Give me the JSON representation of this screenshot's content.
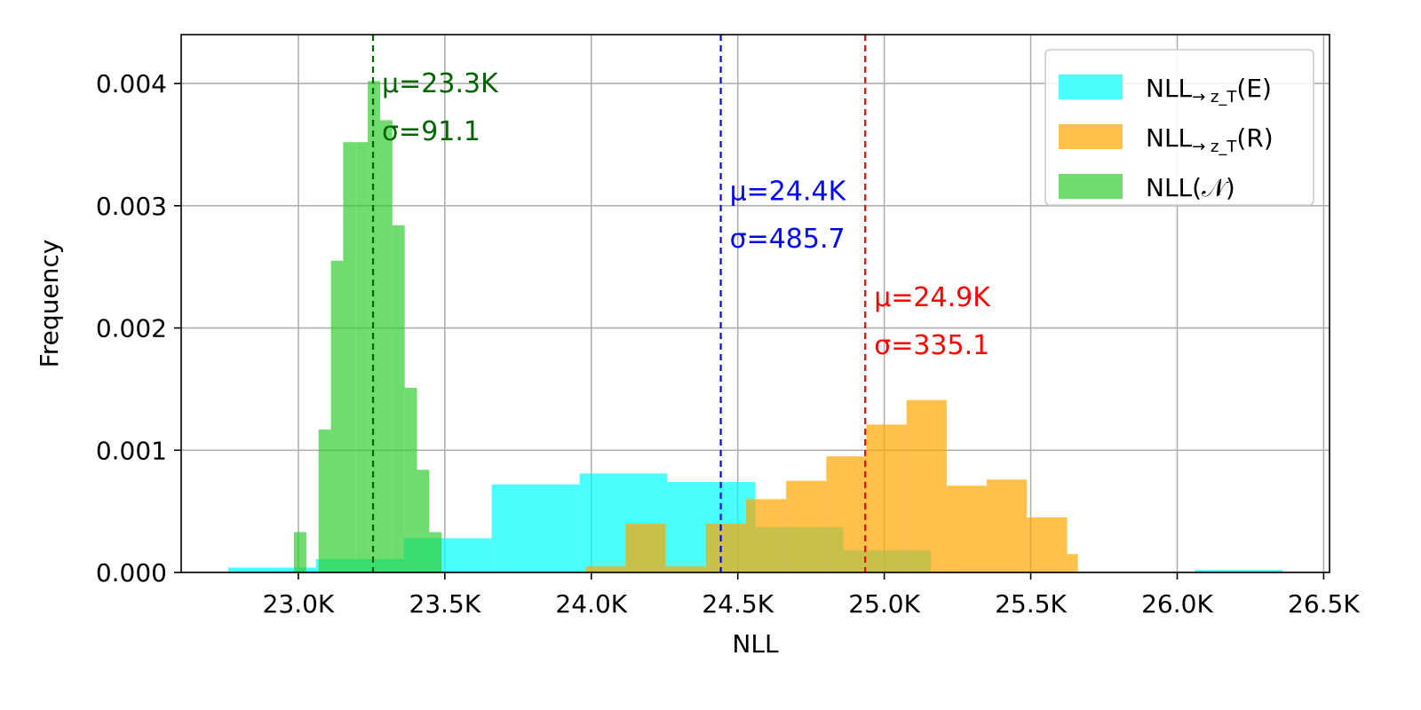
{
  "chart_data": {
    "type": "histogram",
    "title": "",
    "xlabel": "NLL",
    "ylabel": "Frequency",
    "xlim": [
      22600,
      26520
    ],
    "ylim": [
      0,
      0.0044
    ],
    "grid": true,
    "x_ticks": [
      23000,
      23500,
      24000,
      24500,
      25000,
      25500,
      26000,
      26500
    ],
    "x_tick_labels": [
      "23.0K",
      "23.5K",
      "24.0K",
      "24.5K",
      "25.0K",
      "25.5K",
      "26.0K",
      "26.5K"
    ],
    "y_ticks": [
      0,
      0.001,
      0.002,
      0.003,
      0.004
    ],
    "y_tick_labels": [
      "0.000",
      "0.001",
      "0.002",
      "0.003",
      "0.004"
    ],
    "legend_position": "top-right",
    "series": [
      {
        "key": "E",
        "name_main": "NLL",
        "name_sub": "→ z_T",
        "name_tail": "(E)",
        "color": "#00ffff",
        "opacity": 0.7,
        "bin_edges": [
          22760,
          23060,
          23360,
          23660,
          23960,
          24260,
          24560,
          24860,
          25160,
          25460,
          25760,
          26060,
          26360
        ],
        "values": [
          4e-05,
          0.00011,
          0.00028,
          0.00072,
          0.00081,
          0.00074,
          0.00037,
          0.00018,
          0,
          0,
          0,
          2e-05
        ]
      },
      {
        "key": "R",
        "name_main": "NLL",
        "name_sub": "→ z_T",
        "name_tail": "(R)",
        "color": "#ffa500",
        "opacity": 0.7,
        "bin_edges": [
          23980,
          24117,
          24254,
          24391,
          24528,
          24665,
          24802,
          24939,
          25076,
          25213,
          25350,
          25487,
          25624
        ],
        "values": [
          5e-05,
          0.0004,
          5e-05,
          0.0004,
          0.0006,
          0.00075,
          0.00095,
          0.00121,
          0.00141,
          0.00071,
          0.00076,
          0.00045
        ],
        "extra_last_edge": 25661,
        "extra_last_value": 0.00015
      },
      {
        "key": "N",
        "name_main": "NLL",
        "name_sub": "",
        "name_tail": "(𝒩)",
        "color": "#32cd32",
        "opacity": 0.7,
        "bin_edges": [
          22985,
          23027,
          23069,
          23111,
          23153,
          23195,
          23237,
          23279,
          23321,
          23363,
          23405,
          23447,
          23489
        ],
        "values": [
          0.00033,
          0,
          0.00117,
          0.00255,
          0.00352,
          0.00352,
          0.00402,
          0.0037,
          0.00284,
          0.00151,
          0.00084,
          0.00033
        ]
      }
    ],
    "mean_lines": [
      {
        "series": "N",
        "x": 23255,
        "color": "#006400",
        "mu_label": "μ=23.3K",
        "sigma_label": "σ=91.1",
        "label_y_mu": 0.004,
        "label_y_sigma": 0.00361
      },
      {
        "series": "E",
        "x": 24442,
        "color": "#0000ff",
        "mu_label": "μ=24.4K",
        "sigma_label": "σ=485.7",
        "label_y_mu": 0.00312,
        "label_y_sigma": 0.00273
      },
      {
        "series": "R",
        "x": 24935,
        "color": "#ff0000",
        "mu_label": "μ=24.9K",
        "sigma_label": "σ=335.1",
        "label_y_mu": 0.00225,
        "label_y_sigma": 0.00186
      }
    ]
  }
}
